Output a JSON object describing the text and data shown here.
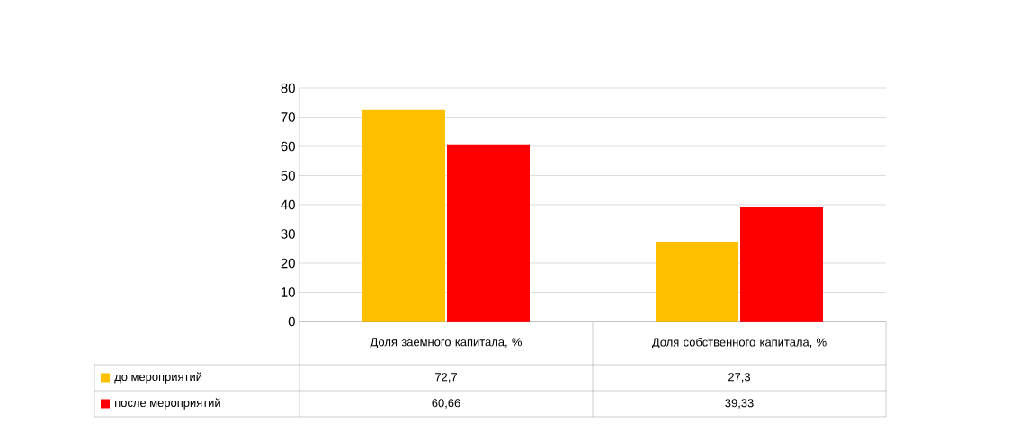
{
  "chart_data": {
    "type": "bar",
    "categories": [
      "Доля заемного капитала, %",
      "Доля собственного капитала, %"
    ],
    "series": [
      {
        "name": "до мероприятий",
        "color": "#ffc000",
        "values": [
          72.7,
          27.3
        ],
        "value_labels": [
          "72,7",
          "27,3"
        ]
      },
      {
        "name": "после мероприятий",
        "color": "#ff0000",
        "values": [
          60.66,
          39.33
        ],
        "value_labels": [
          "60,66",
          "39,33"
        ]
      }
    ],
    "ylim": [
      0,
      80
    ],
    "yticks": [
      0,
      10,
      20,
      30,
      40,
      50,
      60,
      70,
      80
    ],
    "grid": "y",
    "legend": "bottom"
  }
}
